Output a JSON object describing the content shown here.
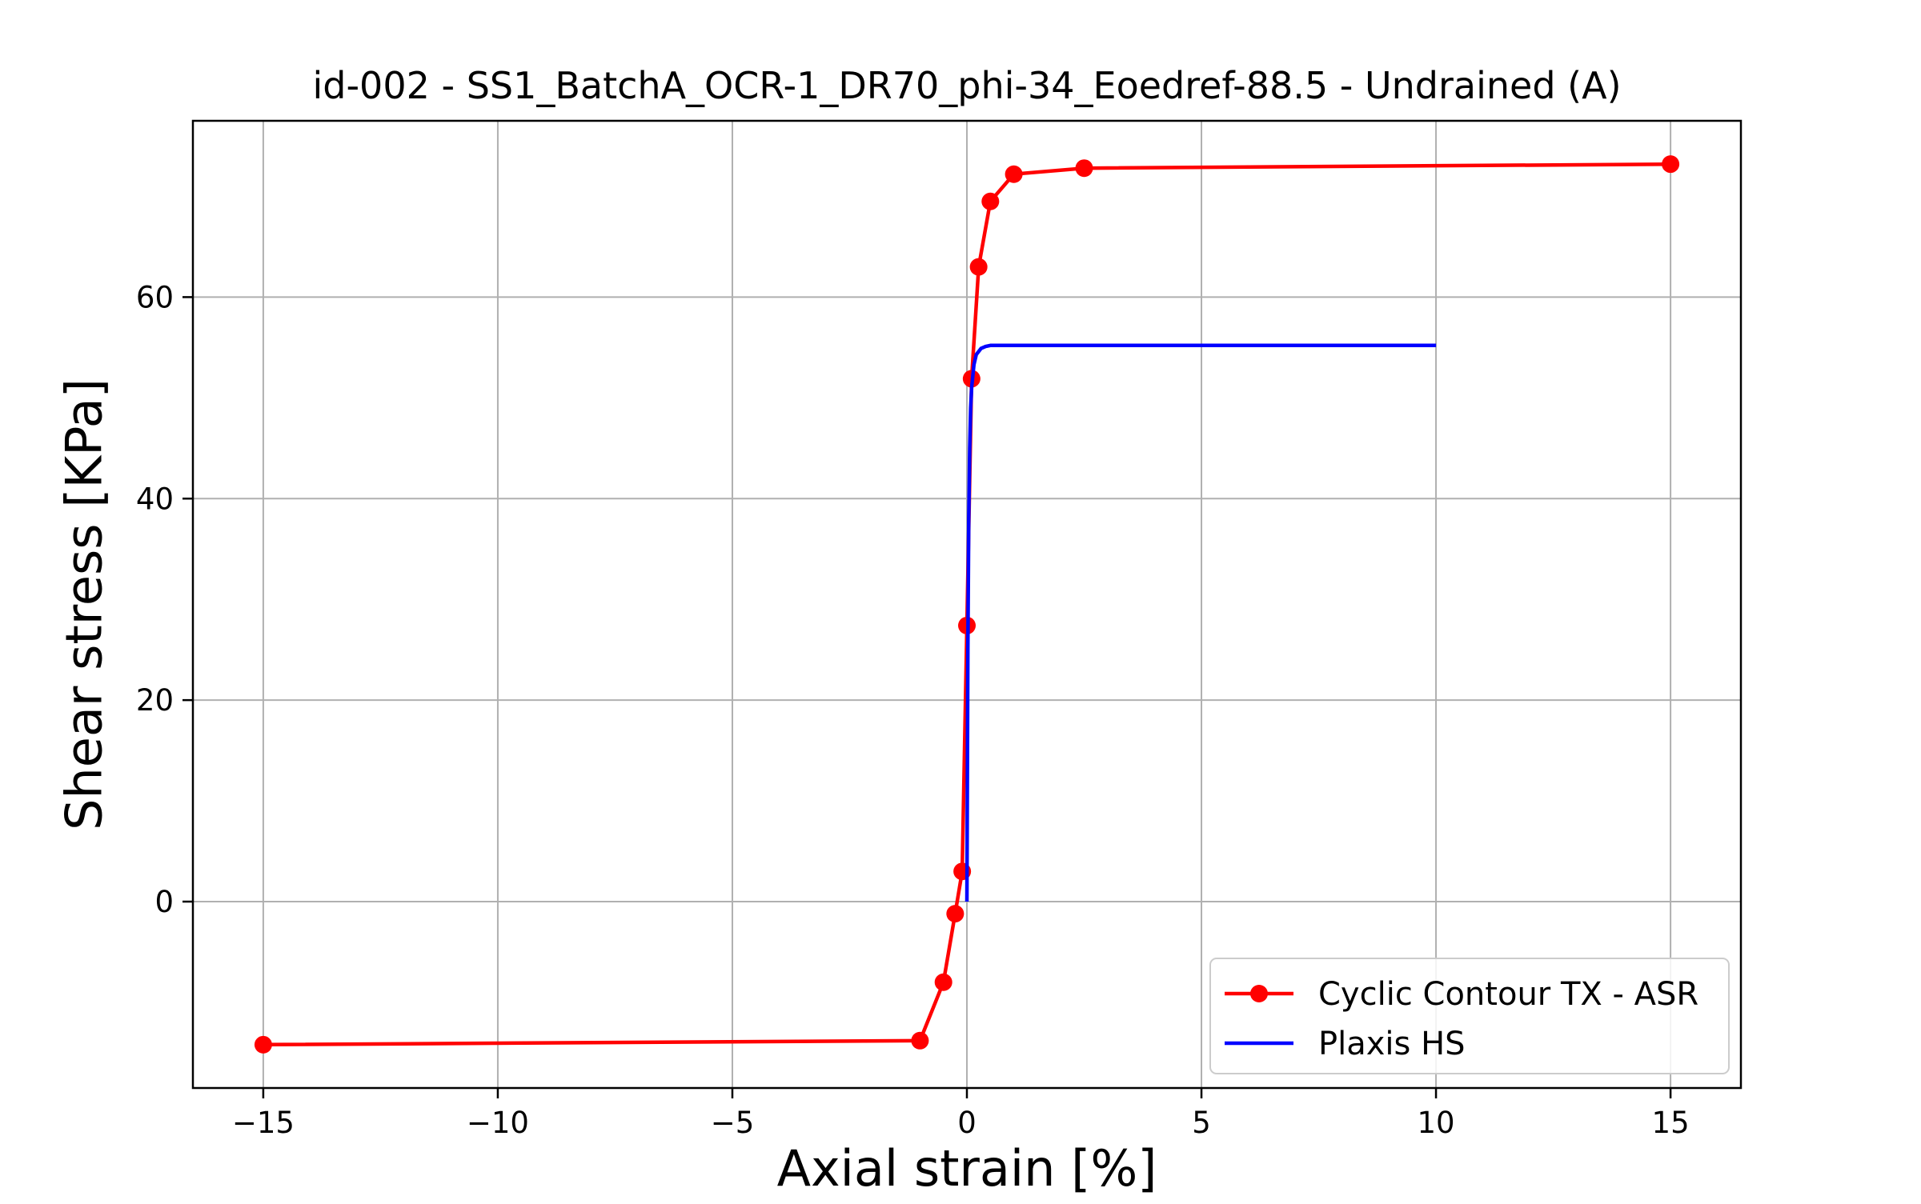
{
  "chart_data": {
    "type": "line",
    "title": "id-002 - SS1_BatchA_OCR-1_DR70_phi-34_Eoedref-88.5 - Undrained (A)",
    "xlabel": "Axial strain [%]",
    "ylabel": "Shear stress [KPa]",
    "xlim": [
      -16.5,
      16.5
    ],
    "ylim": [
      -18.5,
      77.5
    ],
    "x_ticks": [
      -15,
      -10,
      -5,
      0,
      5,
      10,
      15
    ],
    "x_tick_labels": [
      "−15",
      "−10",
      "−5",
      "0",
      "5",
      "10",
      "15"
    ],
    "y_ticks": [
      0,
      20,
      40,
      60
    ],
    "y_tick_labels": [
      "0",
      "20",
      "40",
      "60"
    ],
    "grid": true,
    "legend_position": "lower-right",
    "series": [
      {
        "name": "Cyclic Contour TX - ASR",
        "color": "#ff0000",
        "marker": "circle",
        "x": [
          -15,
          -1,
          -0.5,
          -0.25,
          -0.1,
          0,
          0.1,
          0.25,
          0.5,
          1,
          2.5,
          15
        ],
        "y": [
          -14.2,
          -13.8,
          -8,
          -1.2,
          3,
          27.4,
          51.9,
          63,
          69.5,
          72.2,
          72.8,
          73.2
        ]
      },
      {
        "name": "Plaxis HS",
        "color": "#0000ff",
        "marker": "none",
        "x": [
          0,
          0.02,
          0.04,
          0.06,
          0.08,
          0.1,
          0.15,
          0.2,
          0.3,
          0.4,
          0.5,
          1,
          5,
          10
        ],
        "y": [
          0,
          25,
          38,
          45,
          49,
          51,
          53.3,
          54.3,
          54.9,
          55.1,
          55.2,
          55.2,
          55.2,
          55.2
        ]
      }
    ]
  }
}
